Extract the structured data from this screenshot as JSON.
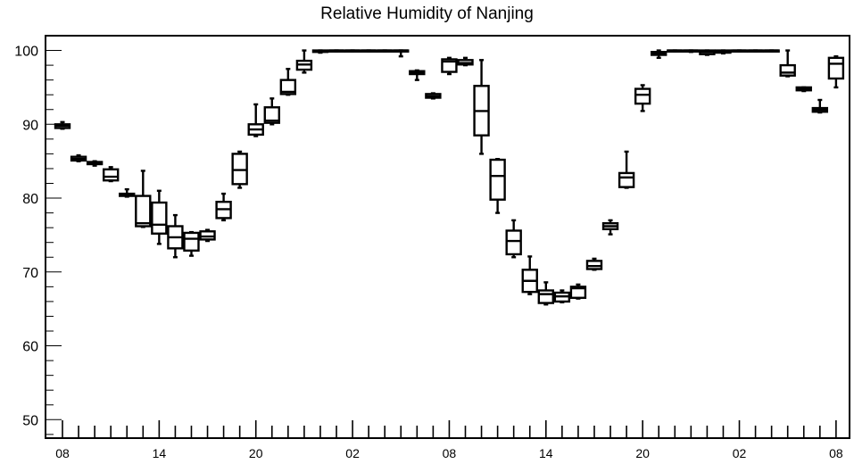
{
  "chart_data": {
    "type": "box",
    "title": "Relative Humidity of Nanjing",
    "xlabel": "",
    "ylabel": "",
    "ylim": [
      47.5,
      102
    ],
    "y_ticks": [
      50,
      60,
      70,
      80,
      90,
      100
    ],
    "x_tick_labels": [
      "08",
      "14",
      "20",
      "02",
      "08",
      "14",
      "20",
      "02",
      "08"
    ],
    "x_tick_hours": [
      0,
      6,
      12,
      18,
      24,
      30,
      36,
      42,
      48
    ],
    "boxes": [
      {
        "hour": 0,
        "min": 89.4,
        "q1": 89.5,
        "median": 89.8,
        "q3": 90.0,
        "max": 90.3
      },
      {
        "hour": 1,
        "min": 85.0,
        "q1": 85.1,
        "median": 85.3,
        "q3": 85.6,
        "max": 85.8
      },
      {
        "hour": 2,
        "min": 84.4,
        "q1": 84.6,
        "median": 84.8,
        "q3": 84.9,
        "max": 85.0
      },
      {
        "hour": 3,
        "min": 82.3,
        "q1": 82.4,
        "median": 82.9,
        "q3": 83.9,
        "max": 84.2
      },
      {
        "hour": 4,
        "min": 80.2,
        "q1": 80.3,
        "median": 80.4,
        "q3": 80.6,
        "max": 81.2
      },
      {
        "hour": 5,
        "min": 76.1,
        "q1": 76.2,
        "median": 76.6,
        "q3": 80.3,
        "max": 83.7
      },
      {
        "hour": 6,
        "min": 73.8,
        "q1": 75.2,
        "median": 76.4,
        "q3": 79.4,
        "max": 81.0
      },
      {
        "hour": 7,
        "min": 72.0,
        "q1": 73.2,
        "median": 74.7,
        "q3": 76.2,
        "max": 77.7
      },
      {
        "hour": 8,
        "min": 72.2,
        "q1": 72.9,
        "median": 74.5,
        "q3": 75.3,
        "max": 75.4
      },
      {
        "hour": 9,
        "min": 74.2,
        "q1": 74.4,
        "median": 74.8,
        "q3": 75.5,
        "max": 75.7
      },
      {
        "hour": 10,
        "min": 77.0,
        "q1": 77.3,
        "median": 78.5,
        "q3": 79.5,
        "max": 80.6
      },
      {
        "hour": 11,
        "min": 81.4,
        "q1": 81.9,
        "median": 83.8,
        "q3": 86.0,
        "max": 86.3
      },
      {
        "hour": 12,
        "min": 88.4,
        "q1": 88.6,
        "median": 89.3,
        "q3": 90.0,
        "max": 92.7
      },
      {
        "hour": 13,
        "min": 90.0,
        "q1": 90.2,
        "median": 90.5,
        "q3": 92.3,
        "max": 93.5
      },
      {
        "hour": 14,
        "min": 94.0,
        "q1": 94.1,
        "median": 94.4,
        "q3": 96.0,
        "max": 97.5
      },
      {
        "hour": 15,
        "min": 97.0,
        "q1": 97.4,
        "median": 98.1,
        "q3": 98.6,
        "max": 100.0
      },
      {
        "hour": 16,
        "min": 99.7,
        "q1": 99.8,
        "median": 99.9,
        "q3": 100.0,
        "max": 100.0
      },
      {
        "hour": 17,
        "min": 99.9,
        "q1": 100.0,
        "median": 100.0,
        "q3": 100.0,
        "max": 100.0
      },
      {
        "hour": 18,
        "min": 99.9,
        "q1": 100.0,
        "median": 100.0,
        "q3": 100.0,
        "max": 100.0
      },
      {
        "hour": 19,
        "min": 99.9,
        "q1": 100.0,
        "median": 100.0,
        "q3": 100.0,
        "max": 100.0
      },
      {
        "hour": 20,
        "min": 99.9,
        "q1": 100.0,
        "median": 100.0,
        "q3": 100.0,
        "max": 100.0
      },
      {
        "hour": 21,
        "min": 99.2,
        "q1": 99.9,
        "median": 100.0,
        "q3": 100.0,
        "max": 100.0
      },
      {
        "hour": 22,
        "min": 96.0,
        "q1": 96.8,
        "median": 97.0,
        "q3": 97.2,
        "max": 97.3
      },
      {
        "hour": 23,
        "min": 93.5,
        "q1": 93.6,
        "median": 93.8,
        "q3": 94.1,
        "max": 94.2
      },
      {
        "hour": 24,
        "min": 96.8,
        "q1": 97.1,
        "median": 98.5,
        "q3": 98.8,
        "max": 99.0
      },
      {
        "hour": 25,
        "min": 98.0,
        "q1": 98.1,
        "median": 98.3,
        "q3": 98.7,
        "max": 99.0
      },
      {
        "hour": 26,
        "min": 86.0,
        "q1": 88.5,
        "median": 91.8,
        "q3": 95.2,
        "max": 98.7
      },
      {
        "hour": 27,
        "min": 78.0,
        "q1": 79.8,
        "median": 83.0,
        "q3": 85.2,
        "max": 85.3
      },
      {
        "hour": 28,
        "min": 72.0,
        "q1": 72.4,
        "median": 74.2,
        "q3": 75.6,
        "max": 77.0
      },
      {
        "hour": 29,
        "min": 67.0,
        "q1": 67.3,
        "median": 68.8,
        "q3": 70.3,
        "max": 72.1
      },
      {
        "hour": 30,
        "min": 65.6,
        "q1": 65.8,
        "median": 67.0,
        "q3": 67.5,
        "max": 68.6
      },
      {
        "hour": 31,
        "min": 65.9,
        "q1": 66.0,
        "median": 66.7,
        "q3": 67.2,
        "max": 67.5
      },
      {
        "hour": 32,
        "min": 66.4,
        "q1": 66.5,
        "median": 67.8,
        "q3": 68.0,
        "max": 68.3
      },
      {
        "hour": 33,
        "min": 70.3,
        "q1": 70.4,
        "median": 70.8,
        "q3": 71.5,
        "max": 71.8
      },
      {
        "hour": 34,
        "min": 75.1,
        "q1": 75.8,
        "median": 76.2,
        "q3": 76.6,
        "max": 77.0
      },
      {
        "hour": 35,
        "min": 81.4,
        "q1": 81.5,
        "median": 82.8,
        "q3": 83.4,
        "max": 86.3
      },
      {
        "hour": 36,
        "min": 91.8,
        "q1": 92.8,
        "median": 94.0,
        "q3": 94.8,
        "max": 95.3
      },
      {
        "hour": 37,
        "min": 99.0,
        "q1": 99.4,
        "median": 99.6,
        "q3": 99.8,
        "max": 100.0
      },
      {
        "hour": 38,
        "min": 99.9,
        "q1": 100.0,
        "median": 100.0,
        "q3": 100.0,
        "max": 100.0
      },
      {
        "hour": 39,
        "min": 99.8,
        "q1": 99.9,
        "median": 100.0,
        "q3": 100.0,
        "max": 100.0
      },
      {
        "hour": 40,
        "min": 99.4,
        "q1": 99.5,
        "median": 99.8,
        "q3": 100.0,
        "max": 100.0
      },
      {
        "hour": 41,
        "min": 99.6,
        "q1": 99.7,
        "median": 99.9,
        "q3": 100.0,
        "max": 100.0
      },
      {
        "hour": 42,
        "min": 99.9,
        "q1": 100.0,
        "median": 100.0,
        "q3": 100.0,
        "max": 100.0
      },
      {
        "hour": 43,
        "min": 99.9,
        "q1": 100.0,
        "median": 100.0,
        "q3": 100.0,
        "max": 100.0
      },
      {
        "hour": 44,
        "min": 99.9,
        "q1": 100.0,
        "median": 100.0,
        "q3": 100.0,
        "max": 100.0
      },
      {
        "hour": 45,
        "min": 96.5,
        "q1": 96.6,
        "median": 97.0,
        "q3": 98.0,
        "max": 100.0
      },
      {
        "hour": 46,
        "min": 94.5,
        "q1": 94.6,
        "median": 94.8,
        "q3": 95.0,
        "max": 95.0
      },
      {
        "hour": 47,
        "min": 91.6,
        "q1": 91.7,
        "median": 92.0,
        "q3": 92.2,
        "max": 93.3
      },
      {
        "hour": 48,
        "min": 95.0,
        "q1": 96.2,
        "median": 98.2,
        "q3": 99.0,
        "max": 99.2
      }
    ]
  }
}
